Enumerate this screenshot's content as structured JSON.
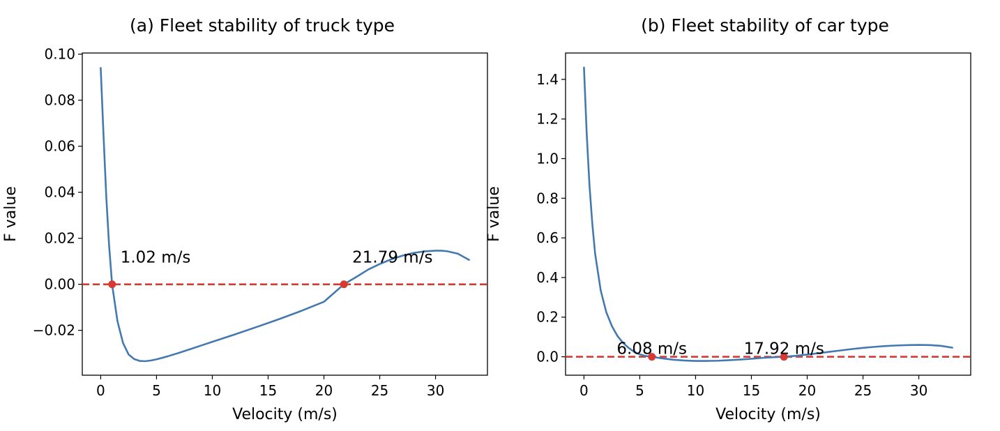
{
  "chart_data": [
    {
      "type": "line",
      "title": "(a) Fleet stability of truck type",
      "xlabel": "Velocity (m/s)",
      "ylabel": "F value",
      "xlim": [
        -1.65,
        34.65
      ],
      "ylim": [
        -0.0395,
        0.1005
      ],
      "xticks": [
        0,
        5,
        10,
        15,
        20,
        25,
        30
      ],
      "yticks": [
        -0.02,
        0.0,
        0.02,
        0.04,
        0.06,
        0.08,
        0.1
      ],
      "ytick_labels": [
        "−0.02",
        "0.00",
        "0.02",
        "0.04",
        "0.06",
        "0.08",
        "0.10"
      ],
      "series": [
        {
          "name": "F value",
          "color": "#4479b0",
          "x": [
            0,
            0.25,
            0.5,
            0.75,
            1.02,
            1.5,
            2,
            2.5,
            3,
            3.5,
            4,
            4.5,
            5,
            6,
            7,
            8,
            9,
            10,
            12,
            14,
            16,
            18,
            20,
            21.79,
            23,
            24,
            25,
            26,
            27,
            28,
            29,
            30,
            30.5,
            31,
            32,
            33
          ],
          "y": [
            0.094,
            0.065,
            0.038,
            0.017,
            0.0,
            -0.016,
            -0.0255,
            -0.0305,
            -0.0325,
            -0.0333,
            -0.0334,
            -0.0331,
            -0.0326,
            -0.0313,
            -0.0298,
            -0.0282,
            -0.0266,
            -0.025,
            -0.0218,
            -0.0185,
            -0.0151,
            -0.0115,
            -0.0076,
            0.0,
            0.0035,
            0.0065,
            0.0088,
            0.0108,
            0.0124,
            0.0136,
            0.0143,
            0.0146,
            0.0146,
            0.0144,
            0.0133,
            0.0106
          ]
        }
      ],
      "reference_line": {
        "y": 0.0,
        "style": "dashed",
        "color": "#d83a33"
      },
      "markers": [
        {
          "x": 1.02,
          "y": 0.0,
          "label": "1.02 m/s",
          "color": "#d83a33"
        },
        {
          "x": 21.79,
          "y": 0.0,
          "label": "21.79 m/s",
          "color": "#d83a33"
        }
      ]
    },
    {
      "type": "line",
      "title": "(b) Fleet stability of car type",
      "xlabel": "Velocity (m/s)",
      "ylabel": "F value",
      "xlim": [
        -1.65,
        34.65
      ],
      "ylim": [
        -0.093,
        1.533
      ],
      "xticks": [
        0,
        5,
        10,
        15,
        20,
        25,
        30
      ],
      "yticks": [
        0.0,
        0.2,
        0.4,
        0.6,
        0.8,
        1.0,
        1.2,
        1.4
      ],
      "ytick_labels": [
        "0.0",
        "0.2",
        "0.4",
        "0.6",
        "0.8",
        "1.0",
        "1.2",
        "1.4"
      ],
      "series": [
        {
          "name": "F value",
          "color": "#4479b0",
          "x": [
            0,
            0.25,
            0.5,
            0.75,
            1,
            1.5,
            2,
            2.5,
            3,
            3.5,
            4,
            4.5,
            5,
            5.5,
            6.08,
            7,
            8,
            9,
            10,
            11,
            12,
            13,
            14,
            15,
            16,
            17,
            17.92,
            19,
            20,
            21,
            22,
            23,
            24,
            25,
            26,
            27,
            28,
            29,
            30,
            31,
            32,
            33
          ],
          "y": [
            1.46,
            1.12,
            0.86,
            0.67,
            0.52,
            0.335,
            0.225,
            0.155,
            0.105,
            0.07,
            0.045,
            0.025,
            0.012,
            0.004,
            0.0,
            -0.008,
            -0.015,
            -0.019,
            -0.021,
            -0.021,
            -0.02,
            -0.017,
            -0.014,
            -0.01,
            -0.0055,
            -0.002,
            0.0,
            0.005,
            0.011,
            0.018,
            0.025,
            0.032,
            0.039,
            0.045,
            0.05,
            0.054,
            0.057,
            0.059,
            0.06,
            0.059,
            0.055,
            0.046
          ]
        }
      ],
      "reference_line": {
        "y": 0.0,
        "style": "dashed",
        "color": "#d83a33"
      },
      "markers": [
        {
          "x": 6.08,
          "y": 0.0,
          "label": "6.08 m/s",
          "color": "#d83a33"
        },
        {
          "x": 17.92,
          "y": 0.0,
          "label": "17.92 m/s",
          "color": "#d83a33"
        }
      ]
    }
  ]
}
